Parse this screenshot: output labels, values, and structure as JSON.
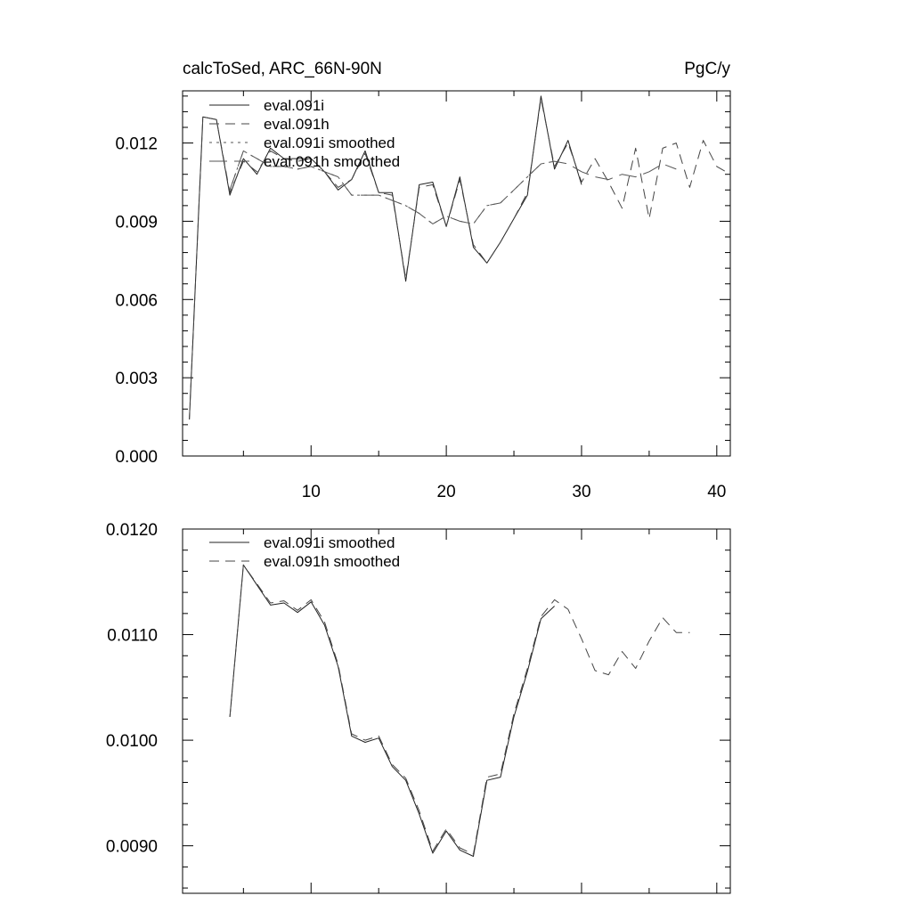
{
  "chart_data": [
    {
      "type": "line",
      "title_left": "calcToSed, ARC_66N-90N",
      "title_right": "PgC/y",
      "xlabel": "",
      "ylabel": "",
      "xlim": [
        0.5,
        41
      ],
      "ylim": [
        0,
        0.014
      ],
      "xticks": [
        10,
        20,
        30,
        40
      ],
      "xtick_labels": [
        "10",
        "20",
        "30",
        "40"
      ],
      "yticks": [
        0,
        0.003,
        0.006,
        0.009,
        0.012
      ],
      "ytick_labels": [
        "0.000",
        "0.003",
        "0.006",
        "0.009",
        "0.012"
      ],
      "legend_position": "top-left",
      "series": [
        {
          "name": "eval.091i",
          "style": "solid",
          "x": [
            1,
            2,
            3,
            4,
            5,
            6,
            7,
            8,
            9,
            10,
            11,
            12,
            13,
            14,
            15,
            16,
            17,
            18,
            19,
            20,
            21,
            22,
            23,
            24,
            25,
            26,
            27,
            28,
            29,
            30
          ],
          "y": [
            0.0014,
            0.013,
            0.0129,
            0.01,
            0.0114,
            0.0108,
            0.0118,
            0.0114,
            0.0114,
            0.0114,
            0.0109,
            0.0102,
            0.0106,
            0.0117,
            0.0101,
            0.0101,
            0.0067,
            0.0104,
            0.0105,
            0.0088,
            0.0107,
            0.008,
            0.0074,
            0.0082,
            0.0091,
            0.01,
            0.0138,
            0.011,
            0.0121,
            0.0104
          ]
        },
        {
          "name": "eval.091h",
          "style": "dashed",
          "x": [
            1,
            2,
            3,
            4,
            5,
            6,
            7,
            8,
            9,
            10,
            11,
            12,
            13,
            14,
            15,
            16,
            17,
            18,
            19,
            20,
            21,
            22,
            23,
            24,
            25,
            26,
            27,
            28,
            29,
            30,
            31,
            32,
            33,
            34,
            35,
            36,
            37,
            38,
            39,
            40,
            41
          ],
          "y": [
            0.0014,
            0.013,
            0.0129,
            0.0101,
            0.0113,
            0.0109,
            0.0117,
            0.0114,
            0.0113,
            0.0114,
            0.0109,
            0.0103,
            0.0106,
            0.0116,
            0.0101,
            0.01,
            0.0068,
            0.0103,
            0.0104,
            0.0088,
            0.0106,
            0.0081,
            0.0074,
            0.0082,
            0.0091,
            0.0101,
            0.0137,
            0.0111,
            0.012,
            0.0105,
            0.0114,
            0.0105,
            0.0095,
            0.0118,
            0.0091,
            0.0118,
            0.012,
            0.0103,
            0.0121,
            0.0111,
            0.0108
          ]
        },
        {
          "name": "eval.091i smoothed",
          "style": "dotted",
          "x": [
            4,
            5,
            6,
            7,
            8,
            9,
            10,
            11,
            12,
            13,
            14,
            15,
            16,
            17,
            18,
            19,
            20,
            21,
            22,
            23,
            24,
            25,
            26,
            27,
            28
          ],
          "y": [
            0.0102,
            0.0117,
            0.0114,
            0.0111,
            0.0111,
            0.011,
            0.0111,
            0.0109,
            0.0107,
            0.01,
            0.01,
            0.01,
            0.0098,
            0.0096,
            0.0093,
            0.0089,
            0.0092,
            0.009,
            0.0089,
            0.0096,
            0.0097,
            0.0102,
            0.0107,
            0.0112,
            0.0113
          ]
        },
        {
          "name": "eval.091h smoothed",
          "style": "long-dashed",
          "x": [
            4,
            5,
            6,
            7,
            8,
            9,
            10,
            11,
            12,
            13,
            14,
            15,
            16,
            17,
            18,
            19,
            20,
            21,
            22,
            23,
            24,
            25,
            26,
            27,
            28,
            29,
            30,
            31,
            32,
            33,
            34,
            35,
            36,
            37
          ],
          "y": [
            0.0102,
            0.0117,
            0.0114,
            0.0111,
            0.0111,
            0.011,
            0.0111,
            0.0109,
            0.0107,
            0.01,
            0.01,
            0.01,
            0.0098,
            0.0096,
            0.0093,
            0.0089,
            0.0092,
            0.009,
            0.0089,
            0.0096,
            0.0097,
            0.0102,
            0.0107,
            0.0112,
            0.0113,
            0.0112,
            0.0109,
            0.0107,
            0.0106,
            0.0108,
            0.0107,
            0.0109,
            0.0112,
            0.011
          ]
        }
      ]
    },
    {
      "type": "line",
      "title_left": "",
      "title_right": "",
      "xlabel": "",
      "ylabel": "",
      "xlim": [
        0.5,
        41
      ],
      "ylim": [
        0.00855,
        0.012
      ],
      "xticks": [
        10,
        20,
        30,
        40
      ],
      "xtick_labels": [],
      "yticks": [
        0.009,
        0.01,
        0.011,
        0.012
      ],
      "ytick_labels": [
        "0.0090",
        "0.0100",
        "0.0110",
        "0.0120"
      ],
      "legend_position": "top-left",
      "series": [
        {
          "name": "eval.091i smoothed",
          "style": "solid",
          "x": [
            4,
            5,
            6,
            7,
            8,
            9,
            10,
            11,
            12,
            13,
            14,
            15,
            16,
            17,
            18,
            19,
            20,
            21,
            22,
            23,
            24,
            25,
            26,
            27,
            28
          ],
          "y": [
            0.01022,
            0.01166,
            0.01147,
            0.01128,
            0.0113,
            0.01121,
            0.01131,
            0.01109,
            0.0107,
            0.01004,
            0.00998,
            0.01002,
            0.00975,
            0.00962,
            0.0093,
            0.00893,
            0.00914,
            0.00896,
            0.0089,
            0.00962,
            0.00965,
            0.01022,
            0.01065,
            0.01115,
            0.01127
          ]
        },
        {
          "name": "eval.091h smoothed",
          "style": "dashed",
          "x": [
            4,
            5,
            6,
            7,
            8,
            9,
            10,
            11,
            12,
            13,
            14,
            15,
            16,
            17,
            18,
            19,
            20,
            21,
            22,
            23,
            24,
            25,
            26,
            27,
            28,
            29,
            30,
            31,
            32,
            33,
            34,
            35,
            36,
            37,
            38
          ],
          "y": [
            0.01022,
            0.01166,
            0.01148,
            0.0113,
            0.01132,
            0.01123,
            0.01133,
            0.01112,
            0.01072,
            0.01006,
            0.01,
            0.01004,
            0.00977,
            0.00964,
            0.00933,
            0.00895,
            0.00916,
            0.00898,
            0.00892,
            0.00965,
            0.00968,
            0.01025,
            0.01068,
            0.01117,
            0.01133,
            0.01124,
            0.01096,
            0.01066,
            0.01062,
            0.01084,
            0.01068,
            0.01094,
            0.01116,
            0.01102,
            0.01102
          ]
        }
      ]
    }
  ]
}
